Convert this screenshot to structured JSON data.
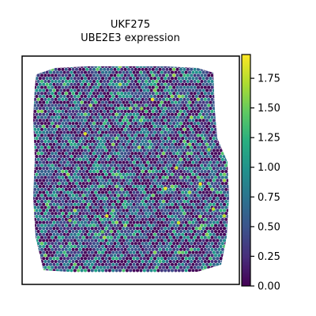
{
  "chart_data": {
    "type": "scatter",
    "subtype": "spatial-hex-spot-map",
    "title_line1": "UKF275",
    "title_line2": "UBE2E3 expression",
    "colormap": "viridis",
    "color_range": [
      0.0,
      1.95
    ],
    "colorbar_ticks": [
      "0.00",
      "0.25",
      "0.50",
      "0.75",
      "1.00",
      "1.25",
      "1.50",
      "1.75"
    ],
    "colorbar_tick_values": [
      0.0,
      0.25,
      0.5,
      0.75,
      1.0,
      1.25,
      1.5,
      1.75
    ],
    "axes_visible": false,
    "grid": false,
    "highlight_spots": [
      {
        "x": 0.6,
        "y": 0.81,
        "value": 1.9
      },
      {
        "x": 0.29,
        "y": 0.66,
        "value": 1.85
      },
      {
        "x": 0.71,
        "y": 0.51,
        "value": 1.8
      },
      {
        "x": 0.82,
        "y": 0.44,
        "value": 1.9
      },
      {
        "x": 0.39,
        "y": 0.3,
        "value": 1.85
      },
      {
        "x": 0.72,
        "y": 0.27,
        "value": 1.8
      },
      {
        "x": 0.88,
        "y": 0.33,
        "value": 1.75
      },
      {
        "x": 0.55,
        "y": 0.77,
        "value": 1.6
      },
      {
        "x": 0.22,
        "y": 0.28,
        "value": 1.6
      },
      {
        "x": 0.66,
        "y": 0.42,
        "value": 1.9
      },
      {
        "x": 0.93,
        "y": 0.3,
        "value": 1.75
      },
      {
        "x": 0.37,
        "y": 0.23,
        "value": 1.5
      },
      {
        "x": 0.86,
        "y": 0.59,
        "value": 1.6
      }
    ]
  }
}
